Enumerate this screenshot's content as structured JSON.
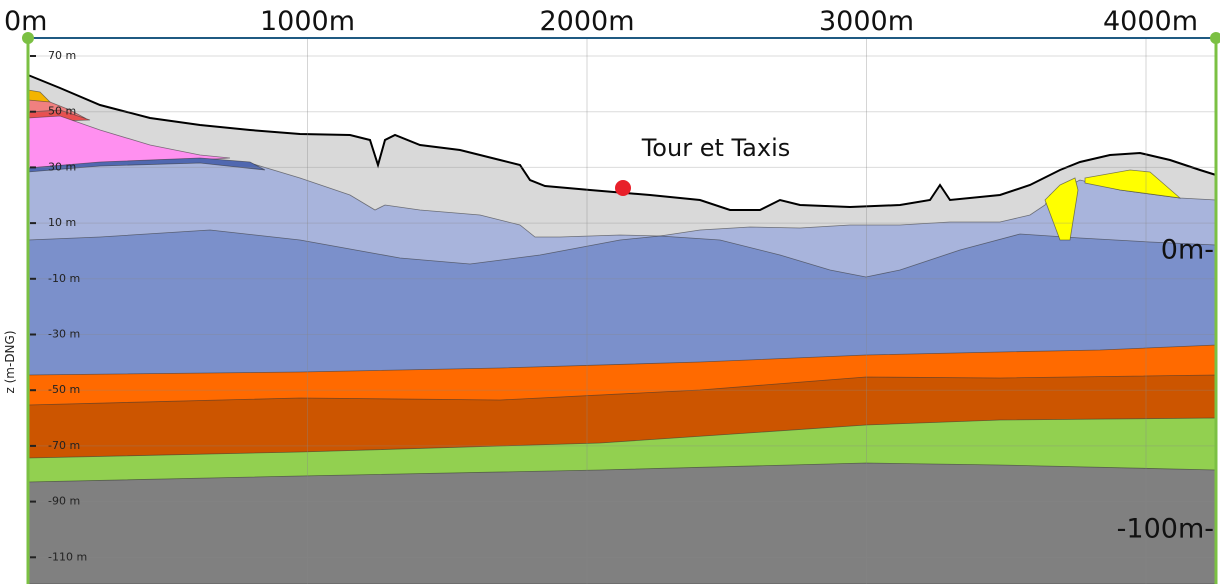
{
  "top_axis": [
    "0m",
    "1000m",
    "2000m",
    "3000m",
    "4000m"
  ],
  "left_axis": [
    "70 m",
    "50 m",
    "30 m",
    "10 m",
    "-10 m",
    "-30 m",
    "-50 m",
    "-70 m",
    "-90 m",
    "-110 m"
  ],
  "axis_title": "z (m-DNG)",
  "right_labels": [
    "0m-",
    "-100m-"
  ],
  "annotation": "Tour et Taxis"
}
